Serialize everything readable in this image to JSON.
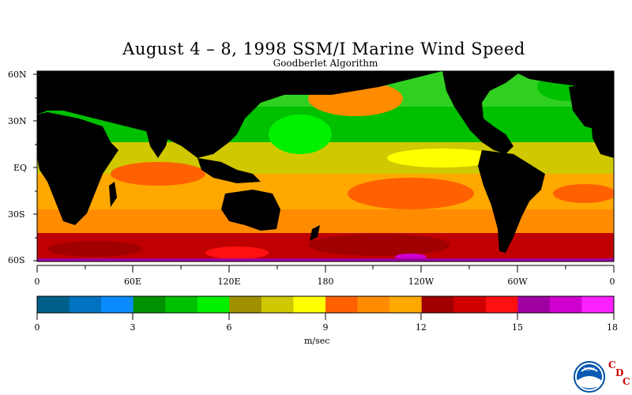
{
  "title": "August 4 – 8, 1998 SSM/I Marine Wind Speed",
  "subtitle": "Goodberlet Algorithm",
  "lat_labels": [
    "60N",
    "30N",
    "EQ",
    "30S",
    "60S"
  ],
  "lon_labels": [
    "0",
    "60E",
    "120E",
    "180",
    "120W",
    "60W",
    "0"
  ],
  "colorbar": {
    "ticks": [
      "0",
      "3",
      "6",
      "9",
      "12",
      "15",
      "18"
    ],
    "units": "m/sec",
    "colors": [
      "#005f8a",
      "#0072c0",
      "#0a8cff",
      "#009000",
      "#00c000",
      "#00f000",
      "#a09000",
      "#d0c800",
      "#ffff00",
      "#ff6000",
      "#ff8c00",
      "#ffa800",
      "#a00000",
      "#d00000",
      "#ff1010",
      "#a000a0",
      "#d000d0",
      "#ff20ff"
    ]
  },
  "colors": {
    "land": "#000000",
    "background": "#ffffff"
  },
  "logo": {
    "name": "noaa-logo",
    "text": "NOAA"
  },
  "cdc_letters": [
    "C",
    "D",
    "C"
  ]
}
